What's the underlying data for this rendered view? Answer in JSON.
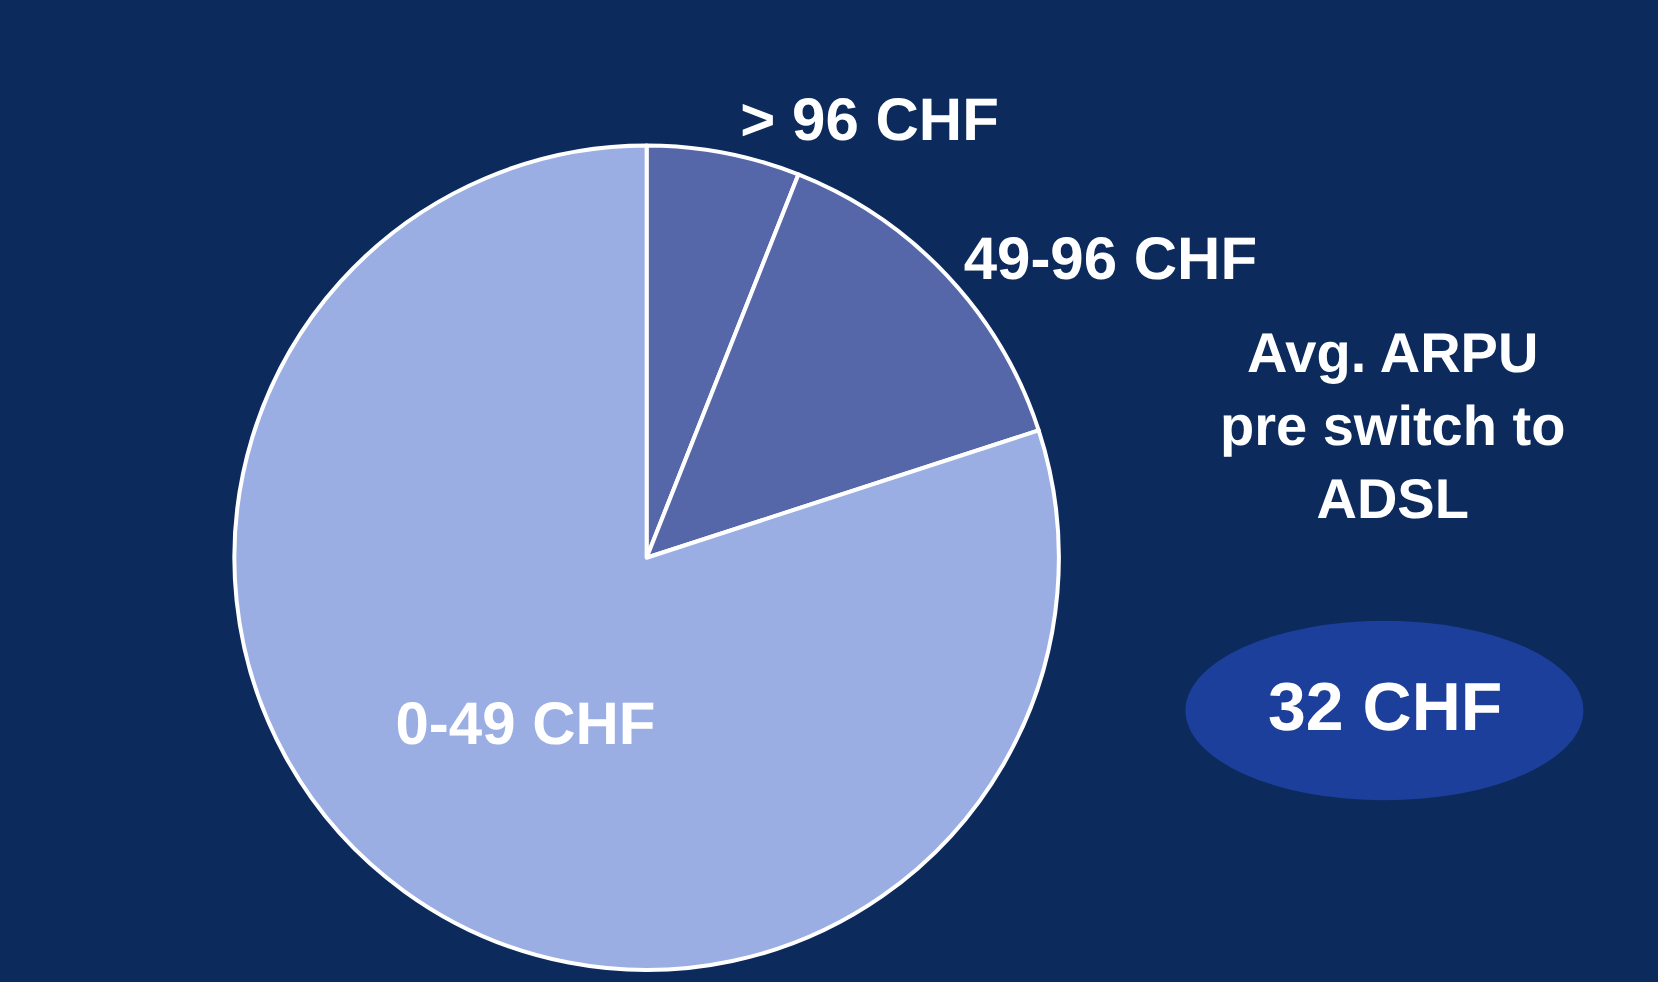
{
  "chart_data": {
    "type": "pie",
    "categories": [
      "> 96 CHF",
      "49-96 CHF",
      "0-49 CHF"
    ],
    "values": [
      6,
      14,
      80
    ],
    "colors": [
      "#5567a8",
      "#5567a8",
      "#9aaee3"
    ],
    "annotations": [
      "Avg. ARPU\npre switch to\nADSL",
      "32 CHF"
    ]
  }
}
